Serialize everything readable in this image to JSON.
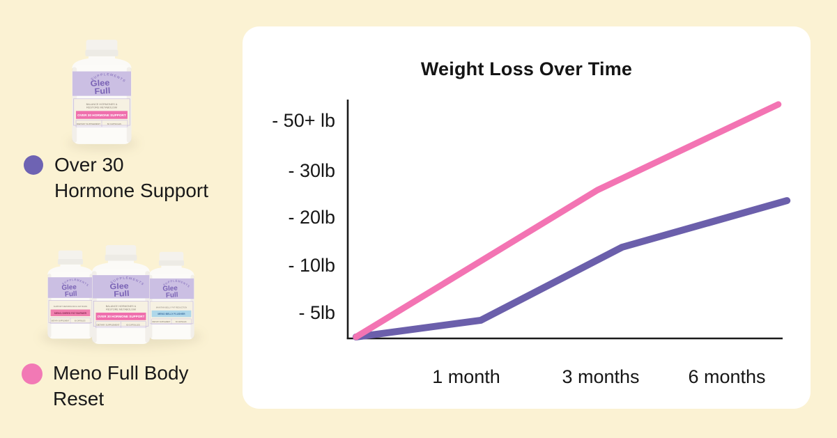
{
  "page": {
    "background_color": "#fbf2d3",
    "card_color": "#ffffff"
  },
  "products": {
    "brand": {
      "arc": "SUPPLEMENTS",
      "name1": "Glee",
      "name2": "Full",
      "logo_color": "#7a63b5",
      "band_color": "#cbbfe3"
    },
    "over30": {
      "tag1": "BALANCE HORMONES &",
      "tag2": "RESTORE METABOLISM",
      "banner": "OVER 30 HORMONE SUPPORT",
      "banner_bg": "#ef6fad",
      "banner_fg": "#ffffff",
      "foot1": "DIETARY SUPPLEMENT",
      "foot2": "60 CAPSULES"
    },
    "shred": {
      "tag1": "SUPPORT METABOLISM & FAT BURN",
      "banner": "MENO-SHRED FAT BURNER",
      "banner_bg": "#f07fae",
      "banner_fg": "#8d3058",
      "foot1": "DIETARY SUPPLEMENT",
      "foot2": "60 CAPSULES"
    },
    "flusher": {
      "tag1": "MAINTAIN BELLY FAT REDUCTION",
      "banner": "MENO BELLY FLUSHER",
      "banner_bg": "#aed7ea",
      "banner_fg": "#3f6fa0",
      "foot1": "DIETARY SUPPLEMENT",
      "foot2": "60 CAPSULES"
    }
  },
  "legend": [
    {
      "label_line1": "Over 30",
      "label_line2": "Hormone Support",
      "color": "#6e63b3"
    },
    {
      "label_line1": "Meno Full Body",
      "label_line2": "Reset",
      "color": "#f279b5"
    }
  ],
  "chart_data": {
    "type": "line",
    "title": "Weight Loss Over Time",
    "x_categories": [
      "1 month",
      "3 months",
      "6 months"
    ],
    "y_tick_labels": [
      "- 50+ lb",
      "- 30lb",
      "- 20lb",
      "- 10lb",
      "- 5lb"
    ],
    "y_scale_note": "nonlinear lb scale, ticks equally spaced top to bottom",
    "grid": false,
    "legend_position": "outside-left",
    "axis_color": "#1b1b1b",
    "series": [
      {
        "id": "over30-hormone-support",
        "name": "Over 30 Hormone Support",
        "color": "#6b5fab",
        "stroke_width": 10,
        "est_lb_lost": {
          "1 month": 4,
          "3 months": 11,
          "6 months": 22
        },
        "points_norm": [
          [
            0.019,
            0.006
          ],
          [
            0.306,
            0.076
          ],
          [
            0.631,
            0.382
          ],
          [
            1.01,
            0.577
          ]
        ]
      },
      {
        "id": "meno-full-body-reset",
        "name": "Meno Full Body Reset",
        "color": "#f374b3",
        "stroke_width": 9,
        "est_lb_lost": {
          "1 month": 10,
          "3 months": 26,
          "6 months": 50
        },
        "points_norm": [
          [
            0.019,
            0.006
          ],
          [
            0.574,
            0.621
          ],
          [
            0.99,
            0.98
          ]
        ]
      }
    ]
  }
}
